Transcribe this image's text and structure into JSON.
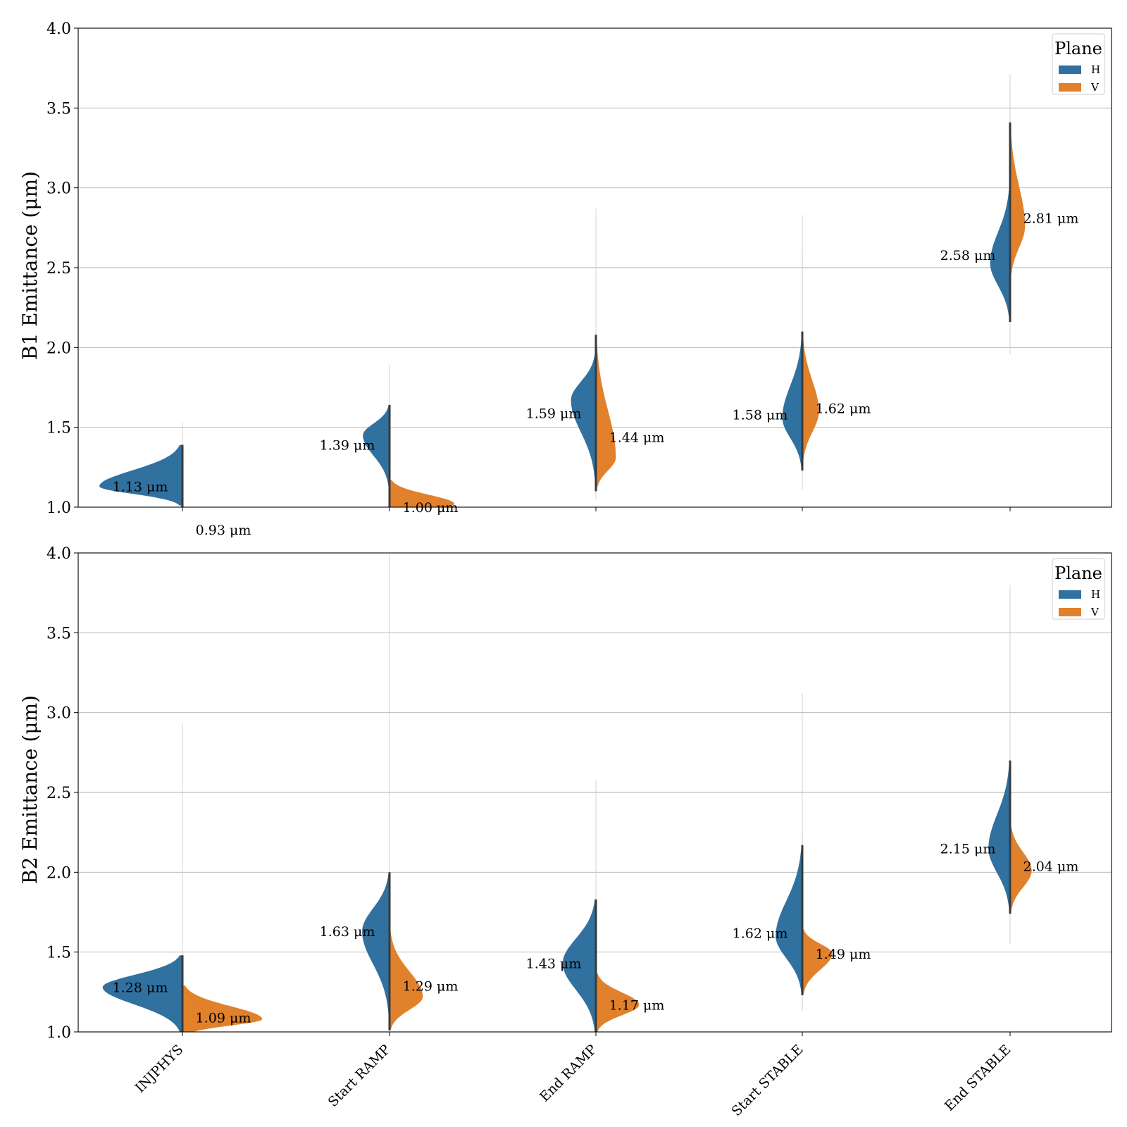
{
  "colors": {
    "H": "#31719f",
    "V": "#e1812c",
    "grid": "#b0b0b0",
    "inner_line": "#3a3a3a"
  },
  "chart_data": [
    {
      "type": "violin",
      "ylabel": "B1 Emittance (μm)",
      "ylim": [
        1.0,
        4.0
      ],
      "yticks": [
        "1.0",
        "1.5",
        "2.0",
        "2.5",
        "3.0",
        "3.5",
        "4.0"
      ],
      "grid": true,
      "legend": {
        "title": "Plane",
        "placement": "top-right",
        "entries": [
          "H",
          "V"
        ]
      },
      "categories": [
        "INJPHYS",
        "Start RAMP",
        "End RAMP",
        "Start STABLE",
        "End STABLE"
      ],
      "series": [
        {
          "name": "H",
          "medians": [
            1.13,
            1.39,
            1.59,
            1.58,
            2.58
          ],
          "median_labels": [
            "1.13 μm",
            "1.39 μm",
            "1.59 μm",
            "1.58 μm",
            "2.58 μm"
          ]
        },
        {
          "name": "V",
          "medians": [
            0.93,
            1.0,
            1.44,
            1.62,
            2.81
          ],
          "median_labels": [
            "0.93 μm",
            "1.00 μm",
            "1.44 μm",
            "1.62 μm",
            "2.81 μm"
          ]
        }
      ]
    },
    {
      "type": "violin",
      "ylabel": "B2 Emittance (μm)",
      "ylim": [
        1.0,
        4.0
      ],
      "yticks": [
        "1.0",
        "1.5",
        "2.0",
        "2.5",
        "3.0",
        "3.5",
        "4.0"
      ],
      "grid": true,
      "legend": {
        "title": "Plane",
        "placement": "top-right",
        "entries": [
          "H",
          "V"
        ]
      },
      "categories": [
        "INJPHYS",
        "Start RAMP",
        "End RAMP",
        "Start STABLE",
        "End STABLE"
      ],
      "series": [
        {
          "name": "H",
          "medians": [
            1.28,
            1.63,
            1.43,
            1.62,
            2.15
          ],
          "median_labels": [
            "1.28 μm",
            "1.63 μm",
            "1.43 μm",
            "1.62 μm",
            "2.15 μm"
          ]
        },
        {
          "name": "V",
          "medians": [
            1.09,
            1.29,
            1.17,
            1.49,
            2.04
          ],
          "median_labels": [
            "1.09 μm",
            "1.29 μm",
            "1.17 μm",
            "1.49 μm",
            "2.04 μm"
          ]
        }
      ]
    }
  ]
}
